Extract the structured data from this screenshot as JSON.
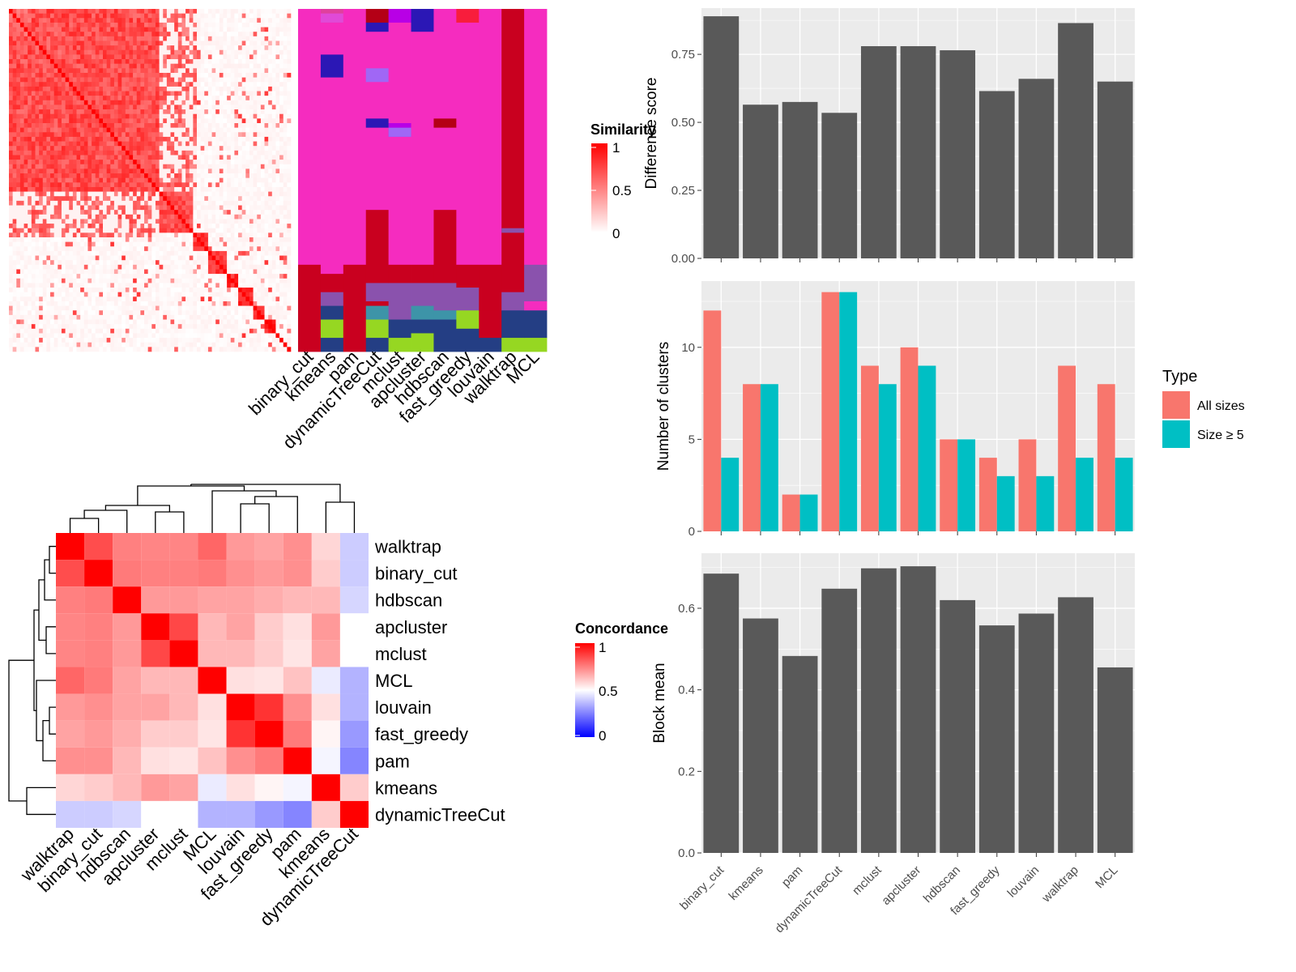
{
  "colors": {
    "sim_high": "#ff0000",
    "sim_low": "#ffffff",
    "conc_high": "#ff0000",
    "conc_mid": "#ffffff",
    "conc_low": "#0000ff",
    "bar_fill": "#595959",
    "panel_bg": "#ebebeb",
    "grid": "#ffffff",
    "all_sizes": "#f8766d",
    "size5": "#00bfc4"
  },
  "chart_data": [
    {
      "id": "similarity",
      "type": "heatmap",
      "legend_title": "Similarity",
      "legend_ticks": [
        "1",
        "0.5",
        "0"
      ],
      "scale": [
        0,
        1
      ],
      "blocks": [
        {
          "start": 0,
          "size": 6,
          "value": 0.72
        },
        {
          "start": 6,
          "size": 8,
          "value": 0.78
        },
        {
          "start": 14,
          "size": 7,
          "value": 0.82
        },
        {
          "start": 21,
          "size": 5,
          "value": 0.86
        },
        {
          "start": 26,
          "size": 8,
          "value": 0.8
        },
        {
          "start": 34,
          "size": 6,
          "value": 0.85
        },
        {
          "start": 40,
          "size": 9,
          "value": 0.82
        },
        {
          "start": 49,
          "size": 4,
          "value": 0.9
        },
        {
          "start": 53,
          "size": 5,
          "value": 0.9
        },
        {
          "start": 58,
          "size": 3,
          "value": 0.95
        },
        {
          "start": 61,
          "size": 4,
          "value": 0.95
        },
        {
          "start": 65,
          "size": 3,
          "value": 1.0
        },
        {
          "start": 68,
          "size": 3,
          "value": 1.0
        }
      ],
      "size": 75
    },
    {
      "id": "partition",
      "type": "heatmap",
      "columns": [
        "binary_cut",
        "kmeans",
        "pam",
        "dynamicTreeCut",
        "mclust",
        "apcluster",
        "hdbscan",
        "fast_greedy",
        "louvain",
        "walktrap",
        "MCL"
      ],
      "class_colors": [
        "#f52cbf",
        "#c9001f",
        "#8a52ad",
        "#243e84",
        "#96d722",
        "#3d94a8",
        "#2b17b5",
        "#a067f5",
        "#e0409d",
        "#b800e6",
        "#b40016",
        "#f81d3c",
        "#e04ad7"
      ]
    },
    {
      "id": "concordance",
      "type": "heatmap",
      "legend_title": "Concordance",
      "legend_ticks": [
        "1",
        "0.5",
        "0"
      ],
      "scale": [
        0,
        1
      ],
      "labels": [
        "walktrap",
        "binary_cut",
        "hdbscan",
        "apcluster",
        "mclust",
        "MCL",
        "louvain",
        "fast_greedy",
        "pam",
        "kmeans",
        "dynamicTreeCut"
      ],
      "values": [
        [
          1.0,
          0.85,
          0.75,
          0.74,
          0.74,
          0.8,
          0.7,
          0.68,
          0.72,
          0.58,
          0.4
        ],
        [
          0.85,
          1.0,
          0.76,
          0.75,
          0.75,
          0.76,
          0.72,
          0.7,
          0.72,
          0.6,
          0.4
        ],
        [
          0.75,
          0.76,
          1.0,
          0.7,
          0.7,
          0.68,
          0.68,
          0.66,
          0.64,
          0.64,
          0.42
        ],
        [
          0.74,
          0.75,
          0.7,
          1.0,
          0.86,
          0.64,
          0.68,
          0.6,
          0.56,
          0.7,
          0.5
        ],
        [
          0.74,
          0.75,
          0.7,
          0.86,
          1.0,
          0.64,
          0.64,
          0.6,
          0.55,
          0.68,
          0.5
        ],
        [
          0.8,
          0.76,
          0.68,
          0.64,
          0.64,
          1.0,
          0.56,
          0.55,
          0.62,
          0.46,
          0.35
        ],
        [
          0.7,
          0.72,
          0.68,
          0.68,
          0.64,
          0.56,
          1.0,
          0.9,
          0.72,
          0.56,
          0.35
        ],
        [
          0.68,
          0.7,
          0.66,
          0.6,
          0.6,
          0.55,
          0.9,
          1.0,
          0.76,
          0.52,
          0.3
        ],
        [
          0.72,
          0.72,
          0.64,
          0.56,
          0.55,
          0.62,
          0.72,
          0.76,
          1.0,
          0.48,
          0.26
        ],
        [
          0.58,
          0.6,
          0.64,
          0.7,
          0.68,
          0.46,
          0.56,
          0.52,
          0.48,
          1.0,
          0.6
        ],
        [
          0.4,
          0.4,
          0.42,
          0.5,
          0.5,
          0.35,
          0.35,
          0.3,
          0.26,
          0.6,
          1.0
        ]
      ]
    },
    {
      "id": "difference",
      "type": "bar",
      "categories": [
        "binary_cut",
        "kmeans",
        "pam",
        "dynamicTreeCut",
        "mclust",
        "apcluster",
        "hdbscan",
        "fast_greedy",
        "louvain",
        "walktrap",
        "MCL"
      ],
      "values": [
        0.89,
        0.565,
        0.575,
        0.535,
        0.78,
        0.78,
        0.765,
        0.615,
        0.66,
        0.865,
        0.65
      ],
      "ylabel": "Difference score",
      "ylim": [
        0,
        0.92
      ],
      "yticks": [
        "0.00",
        "0.25",
        "0.50",
        "0.75"
      ],
      "ytick_values": [
        0,
        0.25,
        0.5,
        0.75
      ],
      "grid": true
    },
    {
      "id": "nclusters",
      "type": "bar",
      "categories": [
        "binary_cut",
        "kmeans",
        "pam",
        "dynamicTreeCut",
        "mclust",
        "apcluster",
        "hdbscan",
        "fast_greedy",
        "louvain",
        "walktrap",
        "MCL"
      ],
      "series": [
        {
          "name": "All sizes",
          "values": [
            12,
            8,
            2,
            13,
            9,
            10,
            5,
            4,
            5,
            9,
            8
          ]
        },
        {
          "name": "Size ≥ 5",
          "values": [
            4,
            8,
            2,
            13,
            8,
            9,
            5,
            3,
            3,
            4,
            4
          ]
        }
      ],
      "ylabel": "Number of clusters",
      "ylim": [
        0,
        13.6
      ],
      "yticks": [
        "0",
        "5",
        "10"
      ],
      "ytick_values": [
        0,
        5,
        10
      ],
      "legend_title": "Type",
      "legend_position": "right",
      "grid": true
    },
    {
      "id": "blockmean",
      "type": "bar",
      "categories": [
        "binary_cut",
        "kmeans",
        "pam",
        "dynamicTreeCut",
        "mclust",
        "apcluster",
        "hdbscan",
        "fast_greedy",
        "louvain",
        "walktrap",
        "MCL"
      ],
      "values": [
        0.685,
        0.575,
        0.483,
        0.648,
        0.698,
        0.703,
        0.62,
        0.558,
        0.587,
        0.627,
        0.455
      ],
      "ylabel": "Block mean",
      "ylim": [
        0,
        0.735
      ],
      "yticks": [
        "0.0",
        "0.2",
        "0.4",
        "0.6"
      ],
      "ytick_values": [
        0,
        0.2,
        0.4,
        0.6
      ],
      "grid": true
    }
  ]
}
